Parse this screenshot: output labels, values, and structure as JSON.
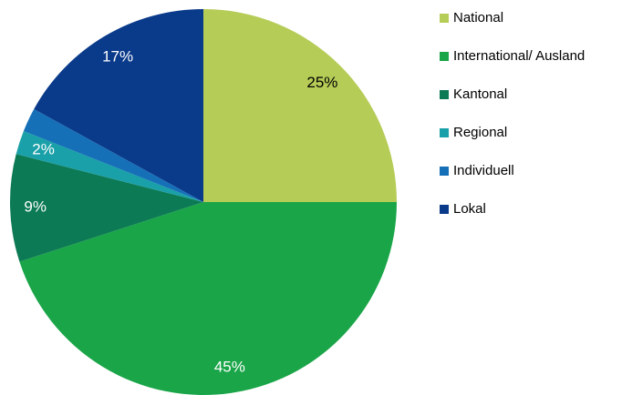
{
  "chart_data": {
    "type": "pie",
    "categories": [
      "National",
      "International/ Ausland",
      "Kantonal",
      "Regional",
      "Individuell",
      "Lokal"
    ],
    "values": [
      25,
      45,
      9,
      2,
      2,
      17
    ],
    "value_labels": [
      "25%",
      "45%",
      "9%",
      "2%",
      null,
      "17%"
    ],
    "colors": [
      "#b5cc57",
      "#1aa548",
      "#0c7a55",
      "#1aa0a8",
      "#1670b8",
      "#0a3a8a"
    ],
    "legend": "right"
  }
}
